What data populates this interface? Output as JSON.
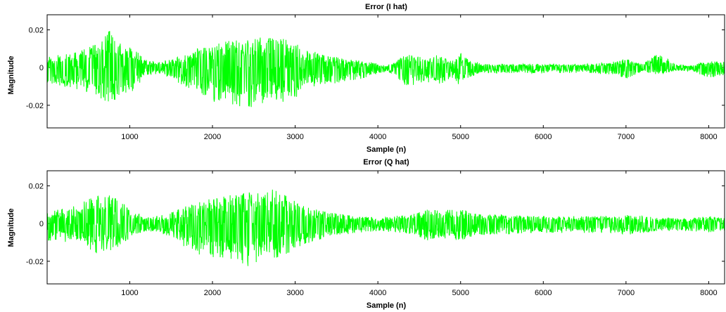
{
  "chart_data": [
    {
      "type": "line",
      "title": "Error (I hat)",
      "xlabel": "Sample (n)",
      "ylabel": "Magnitude",
      "xlim": [
        1,
        8192
      ],
      "ylim": [
        -0.032,
        0.028
      ],
      "xticks": [
        1000,
        2000,
        3000,
        4000,
        5000,
        6000,
        7000,
        8000
      ],
      "xtick_labels": [
        "1000",
        "2000",
        "3000",
        "4000",
        "5000",
        "6000",
        "7000",
        "8000"
      ],
      "yticks": [
        -0.02,
        0,
        0.02
      ],
      "ytick_labels": [
        "-0.02",
        "0",
        "0.02"
      ],
      "grid": false,
      "series": [
        {
          "color": "#00ff00",
          "envelope": {
            "x": [
              1,
              200,
              400,
              600,
              750,
              900,
              1050,
              1200,
              1350,
              1500,
              1650,
              1800,
              2000,
              2200,
              2400,
              2600,
              2800,
              3000,
              3100,
              3200,
              3400,
              3600,
              3800,
              4000,
              4100,
              4200,
              4300,
              4400,
              4500,
              4600,
              4700,
              4800,
              4900,
              5000,
              5100,
              5200,
              5300,
              5400,
              5600,
              5800,
              6000,
              6200,
              6400,
              6600,
              6800,
              7000,
              7100,
              7200,
              7400,
              7600,
              7800,
              8000,
              8192
            ],
            "pos": [
              0.006,
              0.007,
              0.009,
              0.014,
              0.02,
              0.016,
              0.01,
              0.004,
              0.003,
              0.005,
              0.008,
              0.01,
              0.012,
              0.016,
              0.015,
              0.017,
              0.016,
              0.015,
              0.008,
              0.01,
              0.006,
              0.005,
              0.004,
              0.002,
              0.001,
              0.003,
              0.006,
              0.007,
              0.006,
              0.005,
              0.007,
              0.005,
              0.004,
              0.008,
              0.004,
              0.003,
              0.002,
              0.002,
              0.002,
              0.002,
              0.002,
              0.002,
              0.002,
              0.002,
              0.003,
              0.005,
              0.003,
              0.002,
              0.008,
              0.002,
              0.001,
              0.004,
              0.003
            ],
            "neg": [
              -0.009,
              -0.01,
              -0.012,
              -0.015,
              -0.019,
              -0.017,
              -0.012,
              -0.005,
              -0.003,
              -0.006,
              -0.01,
              -0.012,
              -0.018,
              -0.019,
              -0.024,
              -0.02,
              -0.019,
              -0.017,
              -0.01,
              -0.011,
              -0.009,
              -0.008,
              -0.006,
              -0.003,
              -0.002,
              -0.004,
              -0.009,
              -0.01,
              -0.008,
              -0.008,
              -0.009,
              -0.008,
              -0.006,
              -0.01,
              -0.005,
              -0.004,
              -0.003,
              -0.003,
              -0.003,
              -0.003,
              -0.003,
              -0.003,
              -0.003,
              -0.003,
              -0.004,
              -0.006,
              -0.004,
              -0.002,
              -0.004,
              -0.002,
              -0.002,
              -0.006,
              -0.004
            ]
          }
        }
      ]
    },
    {
      "type": "line",
      "title": "Error (Q hat)",
      "xlabel": "Sample (n)",
      "ylabel": "Magnitude",
      "xlim": [
        1,
        8192
      ],
      "ylim": [
        -0.032,
        0.028
      ],
      "xticks": [
        1000,
        2000,
        3000,
        4000,
        5000,
        6000,
        7000,
        8000
      ],
      "xtick_labels": [
        "1000",
        "2000",
        "3000",
        "4000",
        "5000",
        "6000",
        "7000",
        "8000"
      ],
      "yticks": [
        -0.02,
        0,
        0.02
      ],
      "ytick_labels": [
        "-0.02",
        "0",
        "0.02"
      ],
      "grid": false,
      "series": [
        {
          "color": "#00ff00",
          "envelope": {
            "x": [
              1,
              200,
              400,
              600,
              750,
              900,
              1050,
              1200,
              1350,
              1500,
              1650,
              1800,
              2000,
              2200,
              2400,
              2600,
              2800,
              3000,
              3100,
              3200,
              3400,
              3600,
              3800,
              4000,
              4200,
              4400,
              4600,
              4800,
              5000,
              5200,
              5400,
              5600,
              5800,
              6000,
              6200,
              6400,
              6600,
              6800,
              7000,
              7200,
              7400,
              7600,
              7800,
              8000,
              8192
            ],
            "pos": [
              0.007,
              0.008,
              0.01,
              0.017,
              0.015,
              0.012,
              0.006,
              0.004,
              0.004,
              0.006,
              0.009,
              0.011,
              0.014,
              0.015,
              0.017,
              0.018,
              0.019,
              0.012,
              0.01,
              0.008,
              0.006,
              0.005,
              0.004,
              0.003,
              0.004,
              0.005,
              0.008,
              0.007,
              0.008,
              0.005,
              0.005,
              0.005,
              0.004,
              0.004,
              0.004,
              0.004,
              0.004,
              0.004,
              0.005,
              0.004,
              0.003,
              0.003,
              0.003,
              0.004,
              0.003
            ],
            "neg": [
              -0.009,
              -0.01,
              -0.011,
              -0.016,
              -0.015,
              -0.012,
              -0.006,
              -0.004,
              -0.005,
              -0.007,
              -0.012,
              -0.016,
              -0.018,
              -0.019,
              -0.024,
              -0.019,
              -0.018,
              -0.014,
              -0.011,
              -0.01,
              -0.007,
              -0.006,
              -0.005,
              -0.004,
              -0.005,
              -0.006,
              -0.009,
              -0.008,
              -0.009,
              -0.006,
              -0.006,
              -0.006,
              -0.005,
              -0.005,
              -0.005,
              -0.005,
              -0.005,
              -0.005,
              -0.006,
              -0.005,
              -0.004,
              -0.004,
              -0.004,
              -0.005,
              -0.004
            ]
          }
        }
      ]
    }
  ]
}
